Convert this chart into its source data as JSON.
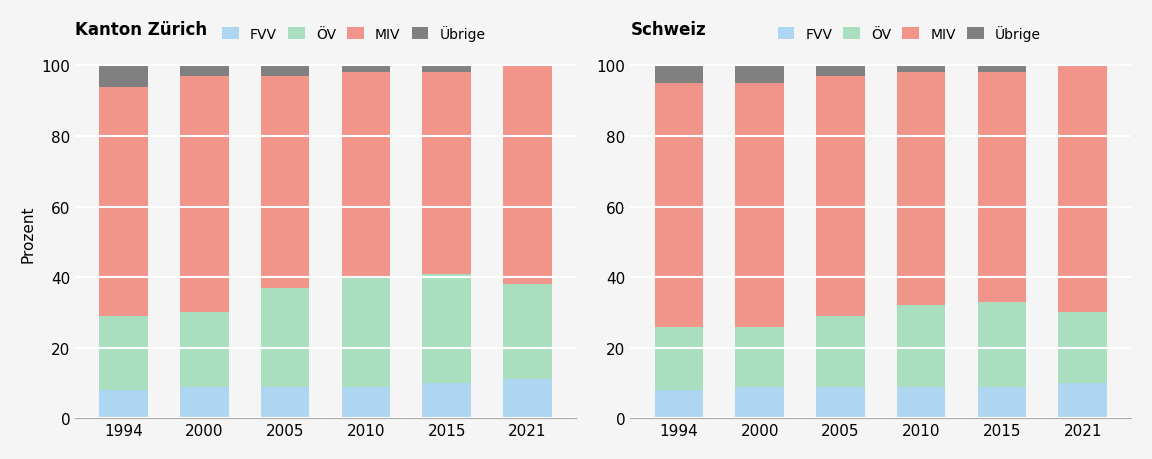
{
  "years": [
    1994,
    2000,
    2005,
    2010,
    2015,
    2021
  ],
  "kanton_zuerich": {
    "title": "Kanton Zürich",
    "FVV": [
      8,
      9,
      9,
      9,
      10,
      11
    ],
    "OV": [
      21,
      21,
      28,
      31,
      31,
      27
    ],
    "MIV": [
      65,
      67,
      60,
      58,
      57,
      62
    ],
    "Ubrige": [
      6,
      3,
      3,
      2,
      2,
      0
    ]
  },
  "schweiz": {
    "title": "Schweiz",
    "FVV": [
      8,
      9,
      9,
      9,
      9,
      10
    ],
    "OV": [
      18,
      17,
      20,
      23,
      24,
      20
    ],
    "MIV": [
      69,
      69,
      68,
      66,
      65,
      70
    ],
    "Ubrige": [
      5,
      5,
      3,
      2,
      2,
      0
    ]
  },
  "colors": {
    "FVV": "#aed6f1",
    "OV": "#a9dfbf",
    "MIV": "#f1948a",
    "Ubrige": "#808080"
  },
  "legend_labels": [
    "FVV",
    "ÖV",
    "MIV",
    "Übrige"
  ],
  "ylabel": "Prozent",
  "ylim": [
    0,
    105
  ],
  "yticks": [
    0,
    20,
    40,
    60,
    80,
    100
  ],
  "bg_color": "#f5f5f5",
  "grid_color": "#ffffff",
  "bar_width": 0.6
}
